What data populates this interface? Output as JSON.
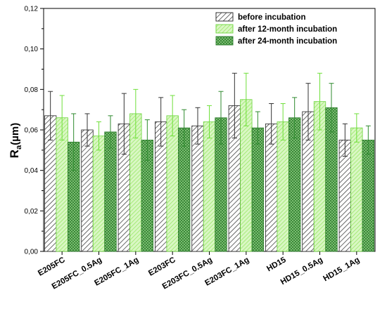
{
  "chart_data": {
    "type": "bar",
    "categories": [
      "E205FC",
      "E205FC_0.5Ag",
      "E205FC_1Ag",
      "E203FC",
      "E203FC_0.5Ag",
      "E203FC_1Ag",
      "HD15",
      "HD15_0.5Ag",
      "HD15_1Ag"
    ],
    "series": [
      {
        "name": "before incubation",
        "values": [
          0.067,
          0.06,
          0.063,
          0.064,
          0.062,
          0.072,
          0.063,
          0.069,
          0.055
        ],
        "errors": [
          0.012,
          0.008,
          0.015,
          0.012,
          0.009,
          0.016,
          0.01,
          0.014,
          0.008
        ],
        "color": "#333333",
        "fill_style": "diagonal-hatch"
      },
      {
        "name": "after 12-month incubation",
        "values": [
          0.066,
          0.057,
          0.068,
          0.067,
          0.064,
          0.075,
          0.064,
          0.074,
          0.061
        ],
        "errors": [
          0.011,
          0.007,
          0.012,
          0.01,
          0.008,
          0.013,
          0.009,
          0.014,
          0.007
        ],
        "color": "#7ee63c",
        "fill_style": "light-green-hatch"
      },
      {
        "name": "after 24-month incubation",
        "values": [
          0.054,
          0.059,
          0.055,
          0.061,
          0.066,
          0.061,
          0.066,
          0.071,
          0.055
        ],
        "errors": [
          0.014,
          0.008,
          0.01,
          0.009,
          0.013,
          0.008,
          0.01,
          0.012,
          0.007
        ],
        "color": "#2f8a2f",
        "fill_style": "dark-green-crosshatch"
      }
    ],
    "title": "",
    "xlabel": "",
    "ylabel": "R",
    "ylabel_subscript": "a",
    "ylabel_unit": "(µm)",
    "ylim": [
      0,
      0.12
    ],
    "yticks": [
      "0,00",
      "0,02",
      "0,04",
      "0,06",
      "0,08",
      "0,10",
      "0,12"
    ],
    "ytick_values": [
      0,
      0.02,
      0.04,
      0.06,
      0.08,
      0.1,
      0.12
    ],
    "legend_position": "top-right",
    "grid": false,
    "error_bars": true
  }
}
